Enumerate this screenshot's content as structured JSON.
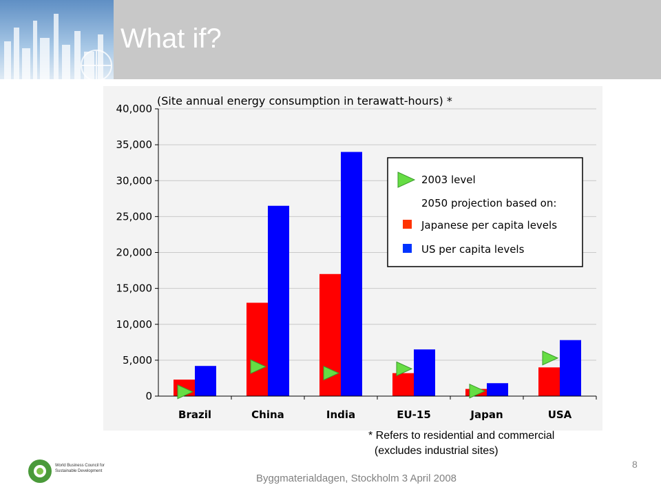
{
  "slide": {
    "title": "What if?",
    "page_number": "8",
    "footer": "Byggmaterialdagen, Stockholm 3 April 2008",
    "footnote_lines": [
      "* Refers to residential and commercial",
      "  (excludes industrial sites)"
    ],
    "logo_text_lines": [
      "World Business Council for",
      "Sustainable Development"
    ]
  },
  "chart_data": {
    "type": "bar",
    "title": "(Site annual energy consumption in terawatt-hours)  *",
    "categories": [
      "Brazil",
      "China",
      "India",
      "EU-15",
      "Japan",
      "USA"
    ],
    "ylim": [
      0,
      40000
    ],
    "yticks": [
      "0",
      "5,000",
      "10,000",
      "15,000",
      "20,000",
      "25,000",
      "30,000",
      "35,000",
      "40,000"
    ],
    "grid": true,
    "legend_position": "top-right",
    "legend_heading": "2050 projection based on:",
    "series": [
      {
        "name": "Japanese per capita levels",
        "color": "#ff0000",
        "values": [
          2300,
          13000,
          17000,
          3200,
          1000,
          4000
        ]
      },
      {
        "name": "US per capita levels",
        "color": "#0000ff",
        "values": [
          4200,
          26500,
          34000,
          6500,
          1800,
          7800
        ]
      }
    ],
    "markers": {
      "name": "2003 level",
      "color": "#66dd44",
      "values": [
        600,
        4100,
        3200,
        3800,
        700,
        5300
      ]
    }
  }
}
